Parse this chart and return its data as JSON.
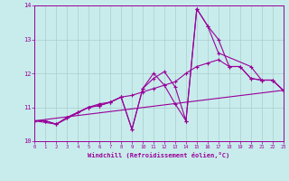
{
  "xlabel": "Windchill (Refroidissement éolien,°C)",
  "xlim": [
    0,
    23
  ],
  "ylim": [
    10,
    14
  ],
  "yticks": [
    10,
    11,
    12,
    13,
    14
  ],
  "xticks": [
    0,
    1,
    2,
    3,
    4,
    5,
    6,
    7,
    8,
    9,
    10,
    11,
    12,
    13,
    14,
    15,
    16,
    17,
    18,
    19,
    20,
    21,
    22,
    23
  ],
  "bg_color": "#c8ecec",
  "line_color": "#990099",
  "grid_color": "#aacccc",
  "series1": [
    [
      0,
      10.6
    ],
    [
      1,
      10.6
    ],
    [
      2,
      10.5
    ],
    [
      3,
      10.7
    ],
    [
      4,
      10.85
    ],
    [
      5,
      11.0
    ],
    [
      6,
      11.05
    ],
    [
      7,
      11.15
    ],
    [
      8,
      11.3
    ],
    [
      9,
      10.35
    ],
    [
      10,
      11.55
    ],
    [
      11,
      11.85
    ],
    [
      12,
      12.05
    ],
    [
      13,
      11.6
    ],
    [
      14,
      10.6
    ],
    [
      15,
      13.9
    ],
    [
      16,
      13.4
    ],
    [
      17,
      13.0
    ],
    [
      18,
      12.2
    ],
    [
      19,
      12.2
    ],
    [
      20,
      11.85
    ],
    [
      21,
      11.8
    ],
    [
      22,
      11.8
    ],
    [
      23,
      11.5
    ]
  ],
  "series2": [
    [
      0,
      10.6
    ],
    [
      1,
      10.6
    ],
    [
      2,
      10.5
    ],
    [
      3,
      10.7
    ],
    [
      4,
      10.85
    ],
    [
      5,
      11.0
    ],
    [
      6,
      11.05
    ],
    [
      7,
      11.15
    ],
    [
      8,
      11.3
    ],
    [
      9,
      11.35
    ],
    [
      10,
      11.45
    ],
    [
      11,
      11.55
    ],
    [
      12,
      11.65
    ],
    [
      13,
      11.75
    ],
    [
      14,
      12.0
    ],
    [
      15,
      12.2
    ],
    [
      16,
      12.3
    ],
    [
      17,
      12.4
    ],
    [
      18,
      12.2
    ],
    [
      19,
      12.2
    ],
    [
      20,
      11.85
    ],
    [
      21,
      11.8
    ],
    [
      22,
      11.8
    ],
    [
      23,
      11.5
    ]
  ],
  "series3": [
    [
      0,
      10.6
    ],
    [
      23,
      11.5
    ]
  ],
  "series4": [
    [
      0,
      10.6
    ],
    [
      2,
      10.5
    ],
    [
      5,
      11.0
    ],
    [
      6,
      11.1
    ],
    [
      7,
      11.15
    ],
    [
      8,
      11.3
    ],
    [
      9,
      10.35
    ],
    [
      10,
      11.55
    ],
    [
      11,
      12.0
    ],
    [
      12,
      11.65
    ],
    [
      13,
      11.1
    ],
    [
      14,
      10.6
    ],
    [
      15,
      13.9
    ],
    [
      16,
      13.4
    ],
    [
      17,
      12.6
    ],
    [
      20,
      12.2
    ],
    [
      21,
      11.8
    ],
    [
      22,
      11.8
    ],
    [
      23,
      11.5
    ]
  ]
}
